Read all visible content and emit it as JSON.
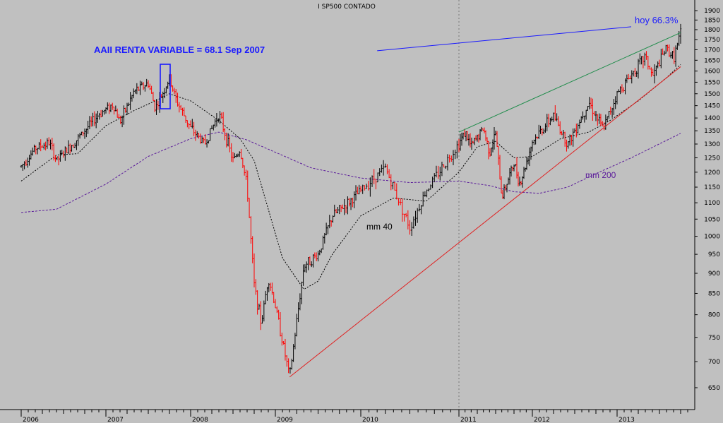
{
  "chart_data": {
    "type": "candlestick",
    "title": "I SP500 CONTADO",
    "y_ticks": [
      650,
      700,
      750,
      800,
      850,
      900,
      950,
      1000,
      1050,
      1100,
      1150,
      1200,
      1250,
      1300,
      1350,
      1400,
      1450,
      1500,
      1550,
      1600,
      1650,
      1700,
      1750,
      1800,
      1850,
      1900
    ],
    "y_scale": "log",
    "x_ticks": [
      "2006",
      "2007",
      "2008",
      "2009",
      "2010",
      "2011",
      "2012",
      "2013"
    ],
    "price_path": [
      [
        "2006-01",
        1220
      ],
      [
        "2006-03",
        1285
      ],
      [
        "2006-05",
        1305
      ],
      [
        "2006-06",
        1240
      ],
      [
        "2006-09",
        1320
      ],
      [
        "2006-12",
        1415
      ],
      [
        "2007-02",
        1455
      ],
      [
        "2007-03",
        1385
      ],
      [
        "2007-05",
        1510
      ],
      [
        "2007-07",
        1545
      ],
      [
        "2007-08",
        1440
      ],
      [
        "2007-10",
        1565
      ],
      [
        "2007-11",
        1470
      ],
      [
        "2008-01",
        1360
      ],
      [
        "2008-03",
        1300
      ],
      [
        "2008-05",
        1420
      ],
      [
        "2008-07",
        1240
      ],
      [
        "2008-08",
        1280
      ],
      [
        "2008-09",
        1150
      ],
      [
        "2008-10",
        870
      ],
      [
        "2008-11",
        780
      ],
      [
        "2008-12",
        890
      ],
      [
        "2009-01",
        820
      ],
      [
        "2009-03",
        670
      ],
      [
        "2009-05",
        920
      ],
      [
        "2009-07",
        950
      ],
      [
        "2009-09",
        1060
      ],
      [
        "2009-12",
        1115
      ],
      [
        "2010-04",
        1215
      ],
      [
        "2010-07",
        1025
      ],
      [
        "2010-09",
        1140
      ],
      [
        "2010-12",
        1260
      ],
      [
        "2011-02",
        1345
      ],
      [
        "2011-03",
        1290
      ],
      [
        "2011-05",
        1360
      ],
      [
        "2011-06",
        1270
      ],
      [
        "2011-07",
        1340
      ],
      [
        "2011-08",
        1120
      ],
      [
        "2011-10",
        1230
      ],
      [
        "2011-11",
        1160
      ],
      [
        "2012-01",
        1310
      ],
      [
        "2012-04",
        1410
      ],
      [
        "2012-06",
        1300
      ],
      [
        "2012-09",
        1465
      ],
      [
        "2012-11",
        1355
      ],
      [
        "2013-01",
        1500
      ],
      [
        "2013-05",
        1670
      ],
      [
        "2013-06",
        1575
      ],
      [
        "2013-08",
        1710
      ],
      [
        "2013-09",
        1660
      ],
      [
        "2013-10",
        1780
      ]
    ],
    "sma40_path": [
      [
        "2006-01",
        1170
      ],
      [
        "2006-06",
        1260
      ],
      [
        "2006-09",
        1265
      ],
      [
        "2007-01",
        1370
      ],
      [
        "2007-05",
        1430
      ],
      [
        "2007-08",
        1470
      ],
      [
        "2007-10",
        1500
      ],
      [
        "2008-01",
        1470
      ],
      [
        "2008-05",
        1390
      ],
      [
        "2008-08",
        1320
      ],
      [
        "2008-10",
        1240
      ],
      [
        "2008-12",
        1080
      ],
      [
        "2009-02",
        940
      ],
      [
        "2009-05",
        860
      ],
      [
        "2009-07",
        880
      ],
      [
        "2009-09",
        950
      ],
      [
        "2010-01",
        1060
      ],
      [
        "2010-05",
        1115
      ],
      [
        "2010-09",
        1105
      ],
      [
        "2011-01",
        1200
      ],
      [
        "2011-04",
        1290
      ],
      [
        "2011-07",
        1310
      ],
      [
        "2011-10",
        1250
      ],
      [
        "2012-01",
        1255
      ],
      [
        "2012-05",
        1320
      ],
      [
        "2012-09",
        1345
      ],
      [
        "2012-12",
        1390
      ],
      [
        "2013-04",
        1470
      ],
      [
        "2013-08",
        1570
      ],
      [
        "2013-10",
        1630
      ]
    ],
    "sma200_path": [
      [
        "2006-01",
        1070
      ],
      [
        "2006-06",
        1080
      ],
      [
        "2007-01",
        1160
      ],
      [
        "2007-07",
        1255
      ],
      [
        "2008-01",
        1320
      ],
      [
        "2008-05",
        1345
      ],
      [
        "2008-09",
        1315
      ],
      [
        "2009-01",
        1270
      ],
      [
        "2009-06",
        1215
      ],
      [
        "2010-01",
        1180
      ],
      [
        "2010-07",
        1165
      ],
      [
        "2011-01",
        1170
      ],
      [
        "2011-06",
        1155
      ],
      [
        "2011-10",
        1135
      ],
      [
        "2012-02",
        1130
      ],
      [
        "2012-06",
        1150
      ],
      [
        "2012-10",
        1195
      ],
      [
        "2013-03",
        1250
      ],
      [
        "2013-10",
        1340
      ]
    ],
    "lines": [
      {
        "name": "support",
        "color": "#e02020",
        "from": [
          "2009-03",
          670
        ],
        "to": [
          "2013-10",
          1620
        ]
      },
      {
        "name": "resistance",
        "color": "#1e8c4a",
        "from": [
          "2011-01",
          1345
        ],
        "to": [
          "2013-10",
          1785
        ]
      },
      {
        "name": "sentiment",
        "color": "#1a1aff",
        "from": [
          "2010-03",
          1695
        ],
        "to": [
          "2013-03",
          1815
        ]
      }
    ],
    "annotations": {
      "aaii": "AAII RENTA VARIABLE = 68.1 Sep 2007",
      "hoy": "hoy 66.3%",
      "mm40": "mm 40",
      "mm200": "mm 200"
    }
  }
}
